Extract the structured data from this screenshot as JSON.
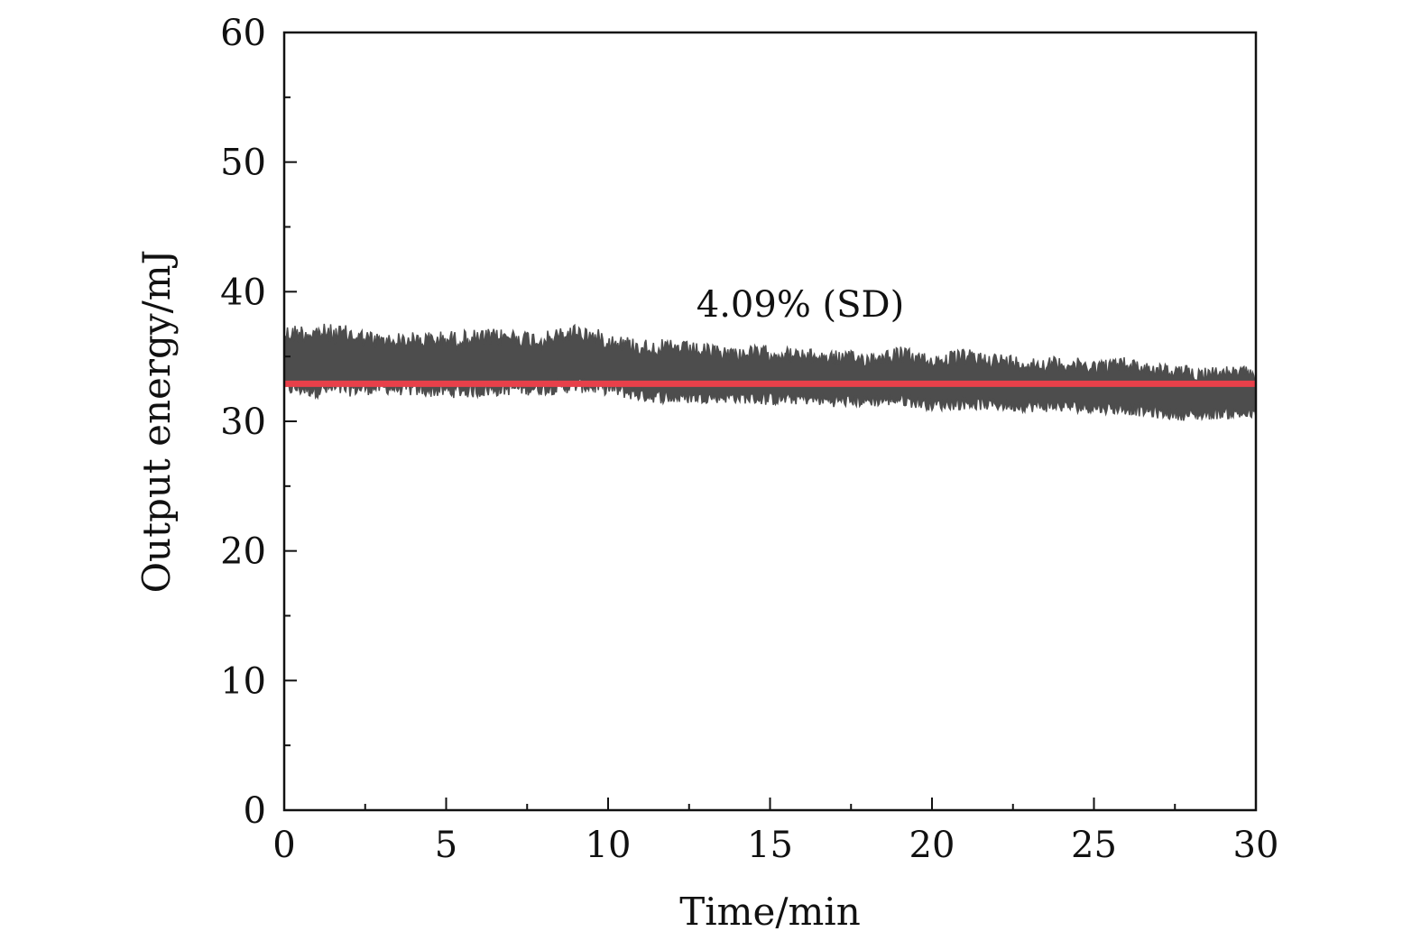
{
  "chart_data": {
    "type": "line",
    "title": "",
    "xlabel": "Time/min",
    "ylabel": "Output energy/mJ",
    "xlim": [
      0,
      30
    ],
    "ylim": [
      0,
      60
    ],
    "x_ticks": [
      0,
      5,
      10,
      15,
      20,
      25,
      30
    ],
    "y_ticks": [
      0,
      10,
      20,
      30,
      40,
      50,
      60
    ],
    "grid": false,
    "annotation": "4.09% (SD)",
    "colors": {
      "signal": "#4d4d4d",
      "mean": "#e8404a",
      "axis": "#111111"
    },
    "series": [
      {
        "role": "signal",
        "envelope_x": [
          0,
          1,
          2,
          3,
          4,
          5,
          6,
          7,
          8,
          9,
          10,
          11,
          12,
          13,
          14,
          15,
          16,
          17,
          18,
          19,
          20,
          21,
          22,
          23,
          24,
          25,
          26,
          27,
          28,
          29,
          30
        ],
        "upper": [
          37.5,
          37.6,
          37.4,
          36.8,
          36.9,
          37.0,
          37.1,
          37.2,
          36.9,
          37.6,
          36.9,
          36.4,
          36.3,
          36.0,
          35.8,
          35.9,
          35.6,
          35.5,
          35.4,
          35.8,
          35.2,
          35.6,
          35.3,
          35.0,
          35.0,
          34.8,
          35.0,
          34.5,
          34.3,
          34.3,
          34.2
        ],
        "lower": [
          32.0,
          31.8,
          31.9,
          32.1,
          31.9,
          31.8,
          31.8,
          32.0,
          32.0,
          32.2,
          32.0,
          31.5,
          31.3,
          31.4,
          31.4,
          31.2,
          31.3,
          31.1,
          31.1,
          31.2,
          30.8,
          30.9,
          30.8,
          30.7,
          30.7,
          30.6,
          30.5,
          30.2,
          30.0,
          30.2,
          30.1
        ]
      },
      {
        "role": "mean",
        "x": [
          0,
          30
        ],
        "y": [
          32.9,
          32.9
        ]
      }
    ]
  }
}
